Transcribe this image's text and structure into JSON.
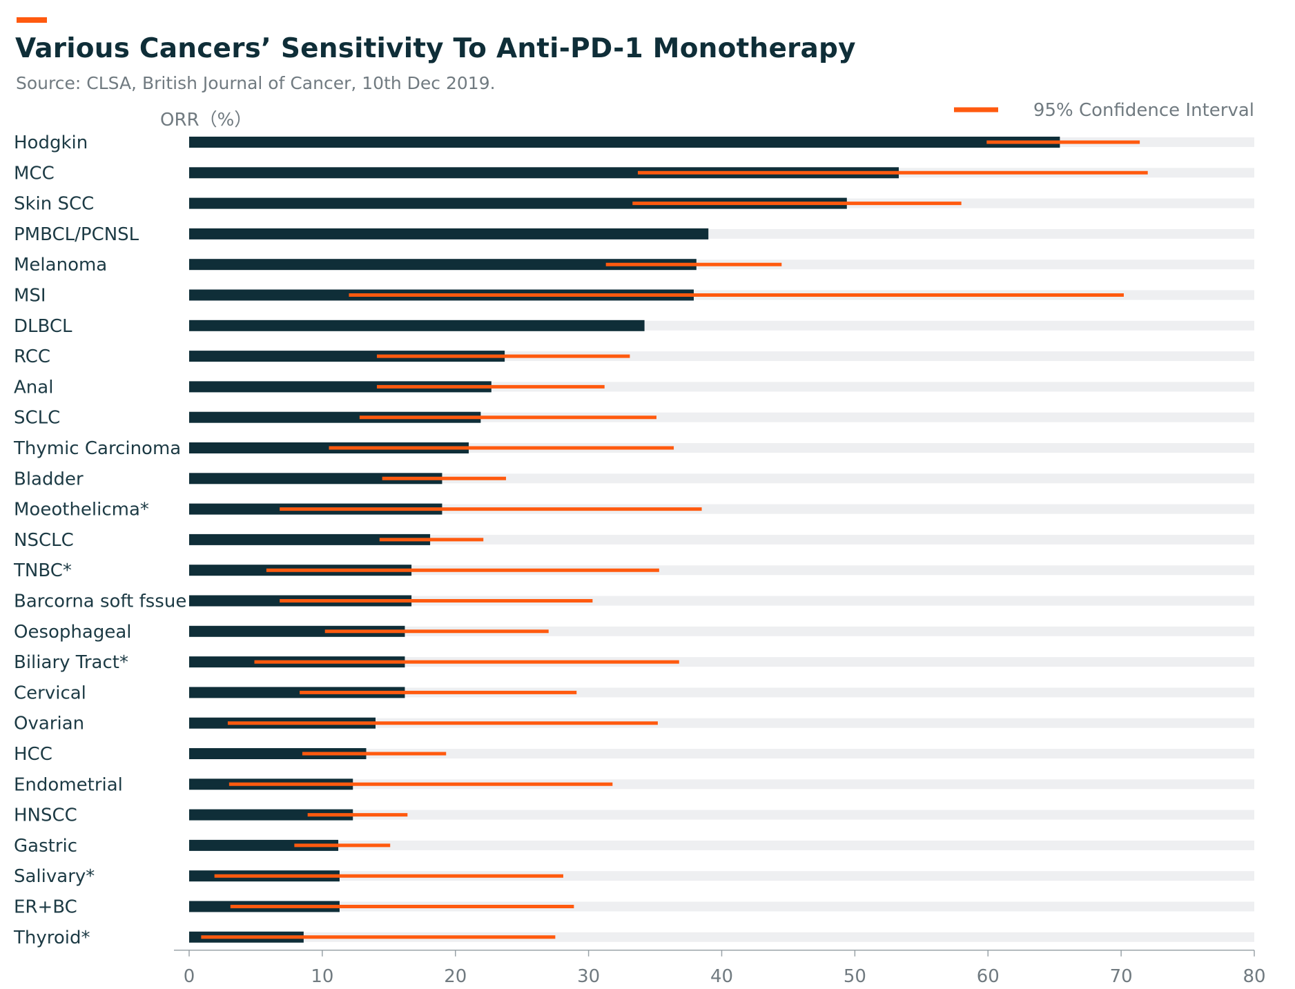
{
  "header": {
    "title": "Various Cancers’ Sensitivity To Anti-PD-1 Monotherapy",
    "subtitle": "Source: CLSA, British Journal of Cancer, 10th Dec 2019."
  },
  "colors": {
    "bar": "#0f2e38",
    "ci": "#ff5a0f",
    "track": "#eeeff1",
    "text": "#1c3a44",
    "muted": "#707a80"
  },
  "chart_data": {
    "type": "bar",
    "orientation": "horizontal",
    "title": "Various Cancers’ Sensitivity To Anti-PD-1 Monotherapy",
    "ylabel": "ORR（%）",
    "xlabel": "",
    "xlim": [
      0,
      80
    ],
    "xticks": [
      0,
      10,
      20,
      30,
      40,
      50,
      60,
      70,
      80
    ],
    "legend": {
      "label": "95% Confidence Interval",
      "position": "top-right"
    },
    "categories": [
      "Hodgkin",
      "MCC",
      "Skin SCC",
      "PMBCL/PCNSL",
      "Melanoma",
      "MSI",
      "DLBCL",
      "RCC",
      "Anal",
      "SCLC",
      "Thymic Carcinoma",
      "Bladder",
      "Moeothelicma*",
      "NSCLC",
      "TNBC*",
      "Barcorna soft fssue",
      "Oesophageal",
      "Biliary Tract*",
      "Cervical",
      "Ovarian",
      "HCC",
      "Endometrial",
      "HNSCC",
      "Gastric",
      "Salivary*",
      "ER+BC",
      "Thyroid*"
    ],
    "values": [
      65.4,
      53.3,
      49.4,
      39.0,
      38.1,
      37.9,
      34.2,
      23.7,
      22.7,
      21.9,
      21.0,
      19.0,
      19.0,
      18.1,
      16.7,
      16.7,
      16.2,
      16.2,
      16.2,
      14.0,
      13.3,
      12.3,
      12.3,
      11.2,
      11.3,
      11.3,
      8.6
    ],
    "ci_low": [
      59.9,
      33.7,
      33.3,
      null,
      31.3,
      12.0,
      null,
      14.1,
      14.1,
      12.8,
      10.5,
      14.5,
      6.8,
      14.3,
      5.8,
      6.8,
      10.2,
      4.9,
      8.3,
      2.9,
      8.5,
      3.0,
      8.9,
      7.9,
      1.9,
      3.1,
      0.9
    ],
    "ci_high": [
      71.4,
      72.0,
      58.0,
      null,
      44.5,
      70.2,
      null,
      33.1,
      31.2,
      35.1,
      36.4,
      23.8,
      38.5,
      22.1,
      35.3,
      30.3,
      27.0,
      36.8,
      29.1,
      35.2,
      19.3,
      31.8,
      16.4,
      15.1,
      28.1,
      28.9,
      27.5
    ]
  }
}
